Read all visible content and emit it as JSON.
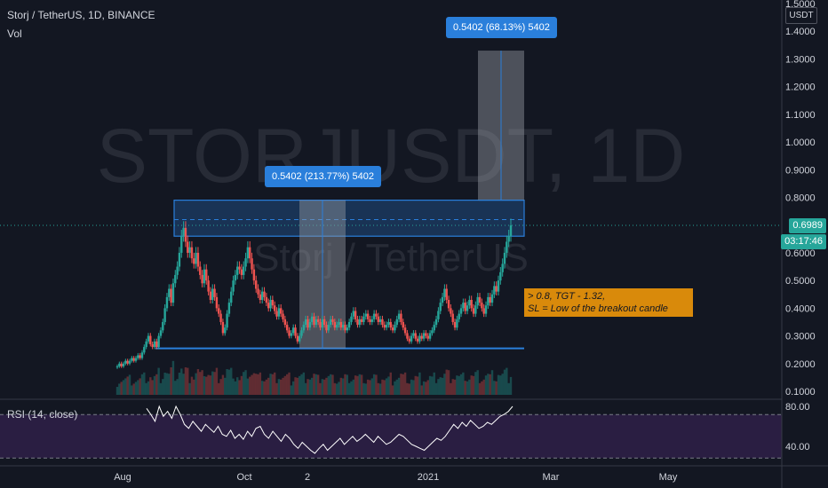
{
  "header": {
    "symbol_title": "Storj / TetherUS, 1D, BINANCE",
    "vol_label": "Vol",
    "rsi_label": "RSI (14, close)"
  },
  "watermark": {
    "line1": "STORJUSDT, 1D",
    "line2": "Storj / TetherUS"
  },
  "price_axis": {
    "unit": "USDT",
    "ticks": [
      "1.5000",
      "1.4000",
      "1.3000",
      "1.2000",
      "1.1000",
      "1.0000",
      "0.9000",
      "0.8000",
      "0.6000",
      "0.5000",
      "0.4000",
      "0.3000",
      "0.2000",
      "0.1000"
    ],
    "current_price": "0.6989",
    "countdown": "03:17:46"
  },
  "rsi_axis": {
    "ticks": [
      "80.00",
      "40.00"
    ]
  },
  "time_axis": {
    "ticks": [
      "Aug",
      "Oct",
      "2",
      "2021",
      "Mar",
      "May"
    ]
  },
  "annotations": {
    "measure_upper": "0.5402 (68.13%) 5402",
    "measure_lower": "0.5402 (213.77%) 5402",
    "note_line1": "> 0.8, TGT - 1.32,",
    "note_line2": "SL = Low of the breakout candle"
  },
  "colors": {
    "background": "#131722",
    "up": "#26a69a",
    "down": "#ef5350",
    "accent_blue": "#2a7fdb",
    "note_orange": "#d98a0b",
    "rsi_band": "#2a1e42"
  },
  "chart_data": [
    {
      "type": "candlestick",
      "title": "Storj / TetherUS, 1D, BINANCE",
      "x_ticks": [
        "Aug",
        "Oct",
        "2",
        "2021",
        "Mar",
        "May"
      ],
      "y_ticks": [
        1.5,
        1.4,
        1.3,
        1.2,
        1.1,
        1.0,
        0.9,
        0.8,
        0.6,
        0.5,
        0.4,
        0.3,
        0.2,
        0.1
      ],
      "ylim": [
        0.07,
        1.52
      ],
      "last_price": 0.6989,
      "series": [
        {
          "name": "close",
          "values": [
            0.19,
            0.2,
            0.19,
            0.2,
            0.21,
            0.2,
            0.21,
            0.22,
            0.21,
            0.22,
            0.23,
            0.22,
            0.24,
            0.26,
            0.28,
            0.3,
            0.27,
            0.26,
            0.28,
            0.26,
            0.3,
            0.32,
            0.35,
            0.4,
            0.44,
            0.47,
            0.42,
            0.49,
            0.52,
            0.55,
            0.6,
            0.66,
            0.69,
            0.64,
            0.6,
            0.62,
            0.58,
            0.56,
            0.6,
            0.55,
            0.52,
            0.49,
            0.54,
            0.5,
            0.46,
            0.43,
            0.47,
            0.44,
            0.4,
            0.38,
            0.35,
            0.31,
            0.33,
            0.38,
            0.42,
            0.46,
            0.5,
            0.52,
            0.55,
            0.54,
            0.52,
            0.55,
            0.58,
            0.62,
            0.58,
            0.54,
            0.5,
            0.47,
            0.45,
            0.43,
            0.46,
            0.44,
            0.42,
            0.4,
            0.43,
            0.41,
            0.39,
            0.37,
            0.4,
            0.38,
            0.36,
            0.34,
            0.32,
            0.3,
            0.31,
            0.33,
            0.3,
            0.28,
            0.3,
            0.32,
            0.34,
            0.36,
            0.33,
            0.35,
            0.37,
            0.34,
            0.36,
            0.35,
            0.33,
            0.36,
            0.34,
            0.32,
            0.34,
            0.36,
            0.35,
            0.33,
            0.34,
            0.35,
            0.33,
            0.34,
            0.32,
            0.33,
            0.35,
            0.37,
            0.39,
            0.36,
            0.34,
            0.36,
            0.35,
            0.37,
            0.38,
            0.36,
            0.35,
            0.36,
            0.38,
            0.37,
            0.35,
            0.36,
            0.34,
            0.33,
            0.34,
            0.35,
            0.33,
            0.32,
            0.34,
            0.36,
            0.38,
            0.35,
            0.33,
            0.31,
            0.29,
            0.28,
            0.3,
            0.31,
            0.29,
            0.28,
            0.3,
            0.29,
            0.31,
            0.3,
            0.29,
            0.31,
            0.32,
            0.34,
            0.36,
            0.39,
            0.42,
            0.44,
            0.47,
            0.43,
            0.4,
            0.38,
            0.35,
            0.33,
            0.36,
            0.38,
            0.4,
            0.42,
            0.39,
            0.41,
            0.43,
            0.4,
            0.38,
            0.41,
            0.44,
            0.42,
            0.4,
            0.38,
            0.41,
            0.44,
            0.42,
            0.45,
            0.48,
            0.46,
            0.5,
            0.53,
            0.56,
            0.6,
            0.64,
            0.66,
            0.6989
          ]
        }
      ],
      "horizontal_levels": [
        0.79,
        0.72,
        0.66,
        0.255
      ],
      "rsi": {
        "name": "RSI (14, close)",
        "ylim": [
          25,
          90
        ],
        "band": [
          30,
          70
        ],
        "y_ticks": [
          80,
          40
        ],
        "values": [
          78,
          72,
          65,
          80,
          70,
          75,
          68,
          80,
          72,
          62,
          58,
          65,
          60,
          55,
          62,
          58,
          54,
          60,
          52,
          50,
          56,
          48,
          52,
          47,
          55,
          50,
          58,
          60,
          52,
          48,
          55,
          50,
          45,
          52,
          48,
          42,
          38,
          44,
          40,
          36,
          33,
          38,
          42,
          36,
          40,
          44,
          48,
          42,
          46,
          50,
          45,
          48,
          52,
          48,
          44,
          50,
          46,
          42,
          44,
          48,
          52,
          50,
          46,
          42,
          40,
          38,
          36,
          40,
          44,
          48,
          46,
          50,
          56,
          62,
          58,
          64,
          60,
          66,
          62,
          58,
          60,
          64,
          62,
          66,
          70,
          72,
          75,
          80
        ]
      }
    }
  ]
}
